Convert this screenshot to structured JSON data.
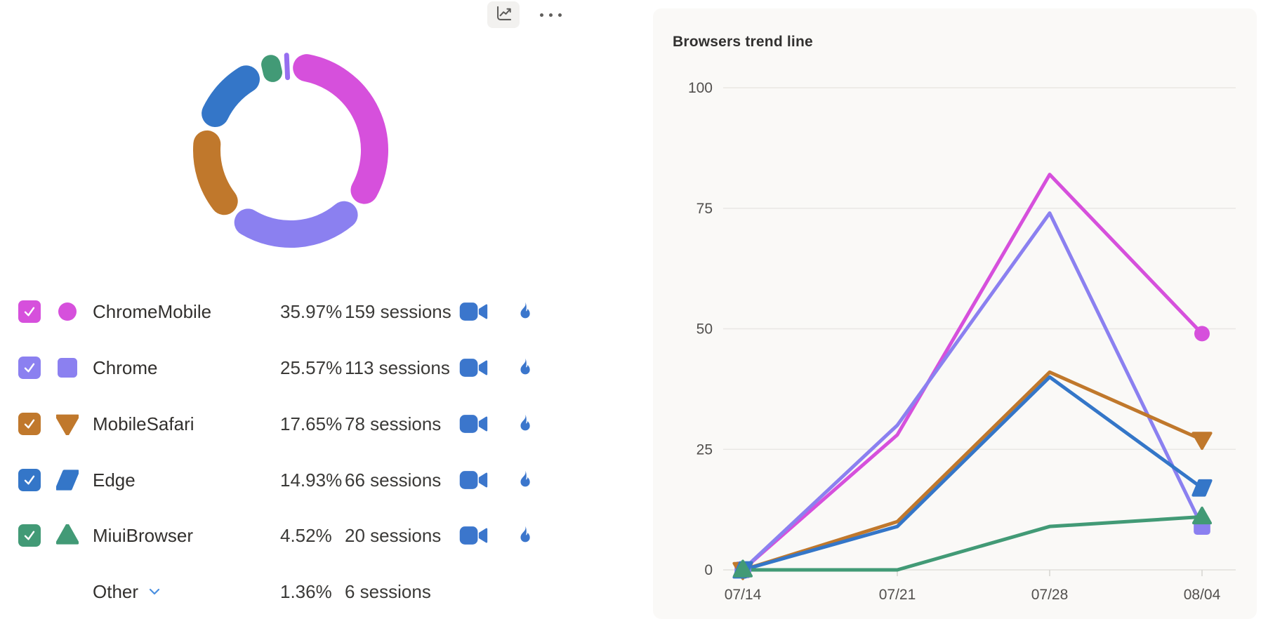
{
  "toolbar": {
    "trend_icon": "trend-line-chart-icon",
    "more_icon": "ellipsis-icon"
  },
  "colors": {
    "chrome_mobile": "#d650dc",
    "chrome": "#8b80f0",
    "mobile_safari": "#c0782c",
    "edge": "#3476c8",
    "miui_browser": "#429a76",
    "other": "#966ef0",
    "action_icon_blue": "#3b76cc",
    "chevron_blue": "#4a8fe0"
  },
  "legend": {
    "rows": [
      {
        "label": "ChromeMobile",
        "percent": "35.97%",
        "sessions": "159 sessions",
        "color": "#d650dc",
        "marker": "circle",
        "checked": true,
        "video_icon": "video-camera-icon",
        "heat_icon": "flame-icon"
      },
      {
        "label": "Chrome",
        "percent": "25.57%",
        "sessions": "113 sessions",
        "color": "#8b80f0",
        "marker": "square",
        "checked": true,
        "video_icon": "video-camera-icon",
        "heat_icon": "flame-icon"
      },
      {
        "label": "MobileSafari",
        "percent": "17.65%",
        "sessions": "78 sessions",
        "color": "#c0782c",
        "marker": "triangle-down",
        "checked": true,
        "video_icon": "video-camera-icon",
        "heat_icon": "flame-icon"
      },
      {
        "label": "Edge",
        "percent": "14.93%",
        "sessions": "66 sessions",
        "color": "#3476c8",
        "marker": "parallelogram",
        "checked": true,
        "video_icon": "video-camera-icon",
        "heat_icon": "flame-icon"
      },
      {
        "label": "MiuiBrowser",
        "percent": "4.52%",
        "sessions": "20 sessions",
        "color": "#429a76",
        "marker": "triangle-up",
        "checked": true,
        "video_icon": "video-camera-icon",
        "heat_icon": "flame-icon"
      }
    ],
    "other_row": {
      "label": "Other",
      "percent": "1.36%",
      "sessions": "6 sessions",
      "expand_icon": "chevron-down-icon"
    }
  },
  "chart_data": [
    {
      "type": "pie",
      "subtype": "donut",
      "title": "",
      "categories": [
        "ChromeMobile",
        "Chrome",
        "MobileSafari",
        "Edge",
        "MiuiBrowser",
        "Other"
      ],
      "values": [
        35.97,
        25.57,
        17.65,
        14.93,
        4.52,
        1.36
      ],
      "unit": "percent",
      "sessions": [
        159,
        113,
        78,
        66,
        20,
        6
      ],
      "colors": [
        "#d650dc",
        "#8b80f0",
        "#c0782c",
        "#3476c8",
        "#429a76",
        "#966ef0"
      ],
      "start": "top",
      "direction": "clockwise",
      "legend_position": "below"
    },
    {
      "type": "line",
      "title": "Browsers trend line",
      "x": [
        "07/14",
        "07/21",
        "07/28",
        "08/04"
      ],
      "ylim": [
        0,
        100
      ],
      "yticks": [
        0,
        25,
        50,
        75,
        100
      ],
      "grid": "horizontal",
      "legend_position": "none",
      "markers": "endpoints-only",
      "series": [
        {
          "name": "ChromeMobile",
          "color": "#d650dc",
          "marker": "circle",
          "values": [
            0,
            28,
            82,
            49
          ]
        },
        {
          "name": "Chrome",
          "color": "#8b80f0",
          "marker": "square",
          "values": [
            0,
            30,
            74,
            9
          ]
        },
        {
          "name": "MobileSafari",
          "color": "#c0782c",
          "marker": "triangle-down",
          "values": [
            0,
            10,
            41,
            27
          ]
        },
        {
          "name": "Edge",
          "color": "#3476c8",
          "marker": "parallelogram",
          "values": [
            0,
            9,
            40,
            17
          ]
        },
        {
          "name": "MiuiBrowser",
          "color": "#429a76",
          "marker": "triangle-up",
          "values": [
            0,
            0,
            9,
            11
          ]
        }
      ]
    }
  ]
}
